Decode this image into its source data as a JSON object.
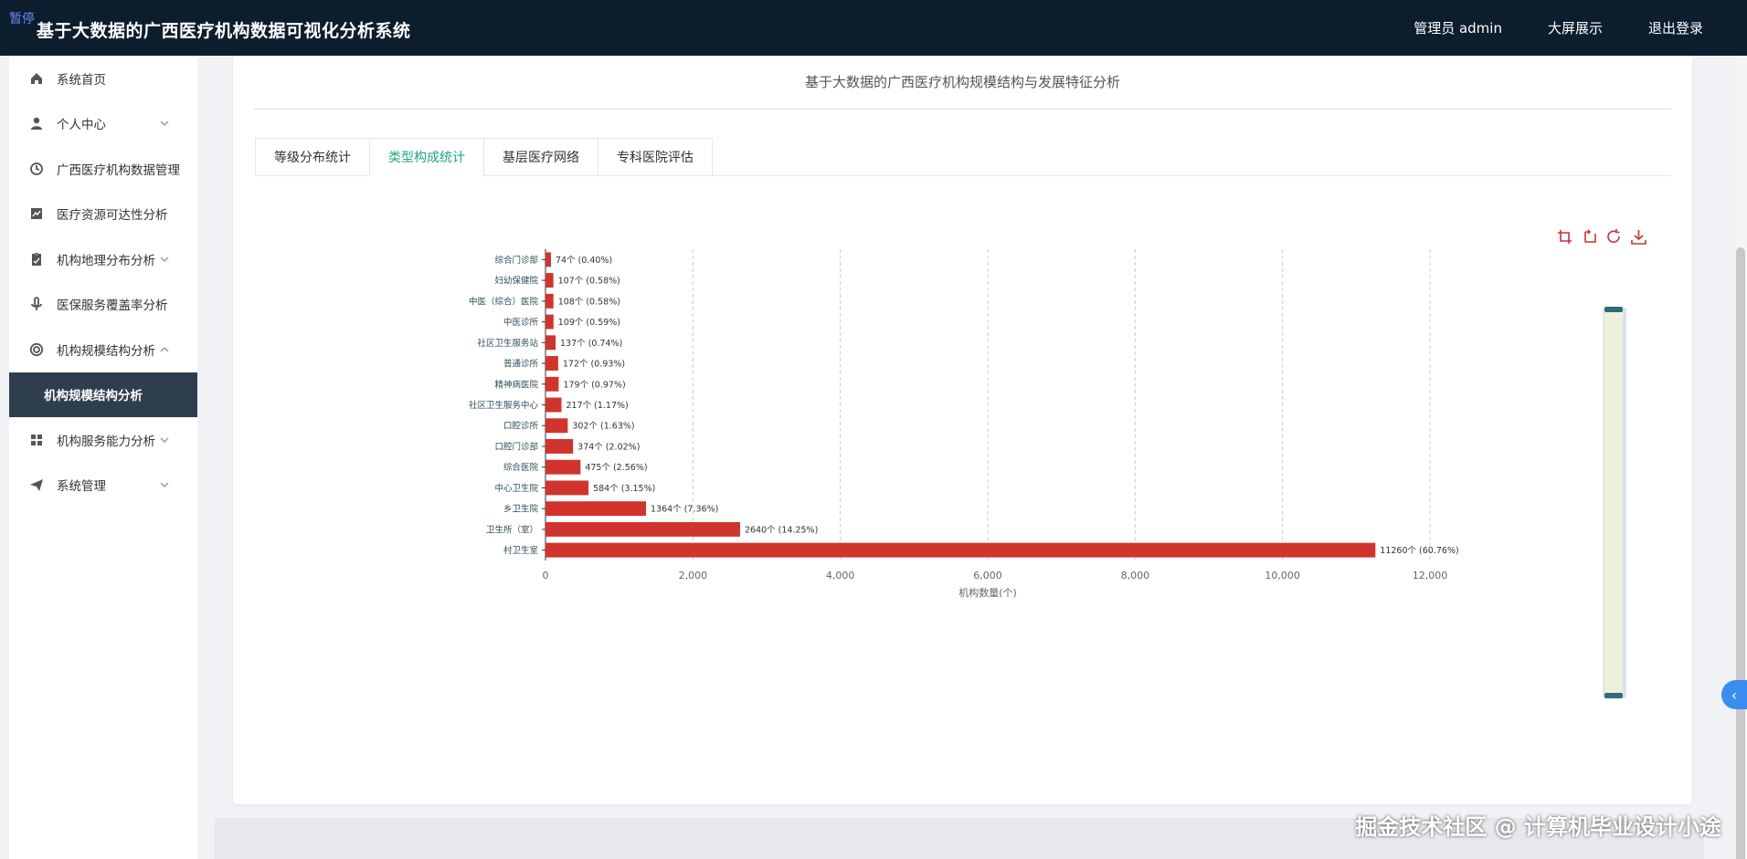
{
  "header": {
    "corner_text": "暂停",
    "title": "基于大数据的广西医疗机构数据可视化分析系统",
    "links": [
      "管理员 admin",
      "大屏展示",
      "退出登录"
    ]
  },
  "sidebar": {
    "items": [
      {
        "label": "系统首页",
        "icon": "home-icon",
        "chevron": false
      },
      {
        "label": "个人中心",
        "icon": "user-icon",
        "chevron": true
      },
      {
        "label": "广西医疗机构数据管理",
        "icon": "clock-icon",
        "chevron": false
      },
      {
        "label": "医疗资源可达性分析",
        "icon": "chart-icon",
        "chevron": false
      },
      {
        "label": "机构地理分布分析",
        "icon": "clipboard-icon",
        "chevron": true
      },
      {
        "label": "医保服务覆盖率分析",
        "icon": "mic-icon",
        "chevron": false
      },
      {
        "label": "机构规模结构分析",
        "icon": "lifebuoy-icon",
        "chevron": "up"
      },
      {
        "label": "机构规模结构分析",
        "icon": "",
        "chevron": false,
        "active": true
      },
      {
        "label": "机构服务能力分析",
        "icon": "grid-icon",
        "chevron": true
      },
      {
        "label": "系统管理",
        "icon": "send-icon",
        "chevron": true
      }
    ]
  },
  "main": {
    "title": "基于大数据的广西医疗机构规模结构与发展特征分析",
    "tabs": [
      {
        "label": "等级分布统计",
        "active": false
      },
      {
        "label": "类型构成统计",
        "active": true
      },
      {
        "label": "基层医疗网络",
        "active": false
      },
      {
        "label": "专科医院评估",
        "active": false
      }
    ]
  },
  "chart_data": {
    "type": "bar",
    "orientation": "horizontal",
    "categories": [
      "综合门诊部",
      "妇幼保健院",
      "中医（综合）医院",
      "中医诊所",
      "社区卫生服务站",
      "普通诊所",
      "精神病医院",
      "社区卫生服务中心",
      "口腔诊所",
      "口腔门诊部",
      "综合医院",
      "中心卫生院",
      "乡卫生院",
      "卫生所（室）",
      "村卫生室"
    ],
    "values": [
      74,
      107,
      108,
      109,
      137,
      172,
      179,
      217,
      302,
      374,
      475,
      584,
      1364,
      2640,
      11260
    ],
    "labels": [
      "74个 (0.40%)",
      "107个 (0.58%)",
      "108个 (0.58%)",
      "109个 (0.59%)",
      "137个 (0.74%)",
      "172个 (0.93%)",
      "179个 (0.97%)",
      "217个 (1.17%)",
      "302个 (1.63%)",
      "374个 (2.02%)",
      "475个 (2.56%)",
      "584个 (3.15%)",
      "1364个 (7.36%)",
      "2640个 (14.25%)",
      "11260个 (60.76%)"
    ],
    "xlabel": "机构数量(个)",
    "xlim": [
      0,
      12000
    ],
    "xticks": [
      "0",
      "2,000",
      "4,000",
      "6,000",
      "8,000",
      "10,000",
      "12,000"
    ],
    "grid": true,
    "color": "#d0342c"
  },
  "watermark": "掘金技术社区 @ 计算机毕业设计小途"
}
